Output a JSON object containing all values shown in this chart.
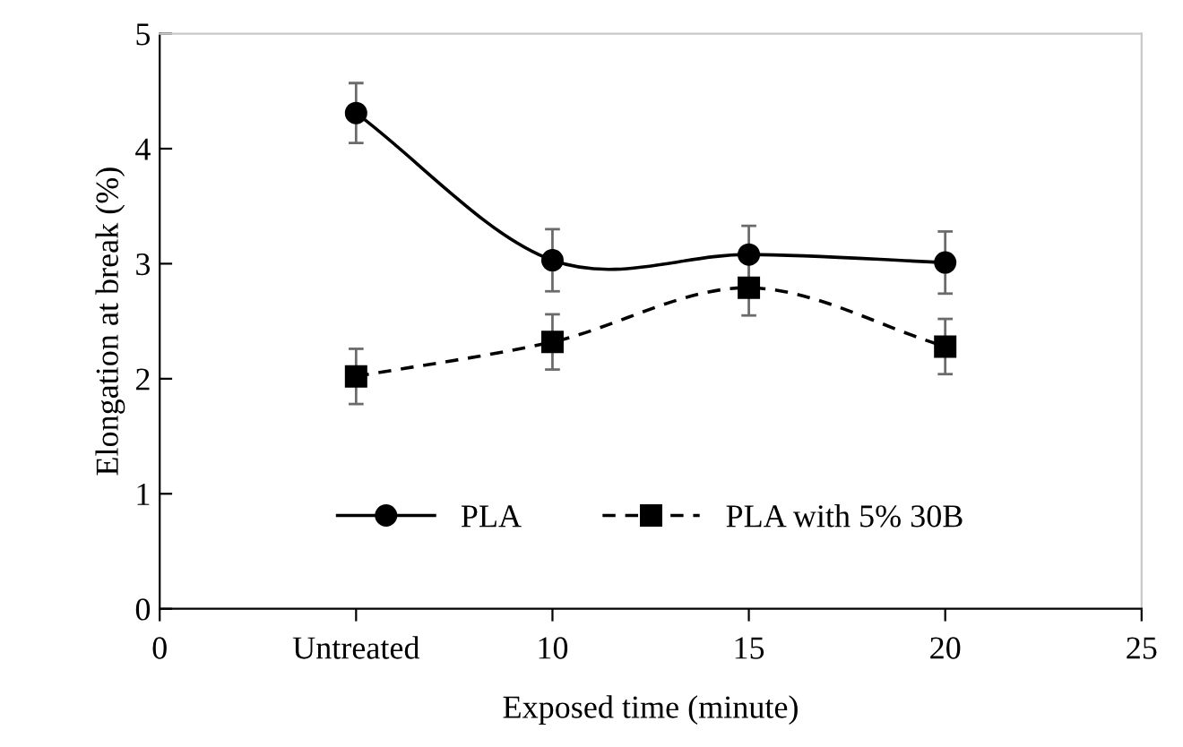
{
  "chart_data": {
    "type": "line",
    "xlabel": "Exposed time (minute)",
    "ylabel": "Elongation at break (%)",
    "x": [
      5,
      10,
      15,
      20
    ],
    "xlim": [
      0,
      25
    ],
    "xticks": [
      0,
      {
        "value": 5,
        "label": "Untreated"
      },
      10,
      15,
      20,
      25
    ],
    "ylim": [
      0,
      5
    ],
    "yticks": [
      0,
      1,
      2,
      3,
      4,
      5
    ],
    "grid": false,
    "legend": "bottom",
    "series": [
      {
        "name": "PLA",
        "color": "#000000",
        "marker": "circle",
        "line_style": "solid",
        "values": [
          4.31,
          3.03,
          3.08,
          3.01
        ],
        "errors": [
          0.26,
          0.27,
          0.25,
          0.27
        ]
      },
      {
        "name": "PLA with 5% 30B",
        "color": "#000000",
        "marker": "square",
        "line_style": "dashed",
        "values": [
          2.02,
          2.32,
          2.79,
          2.28
        ],
        "errors": [
          0.24,
          0.24,
          0.24,
          0.24
        ]
      }
    ]
  }
}
